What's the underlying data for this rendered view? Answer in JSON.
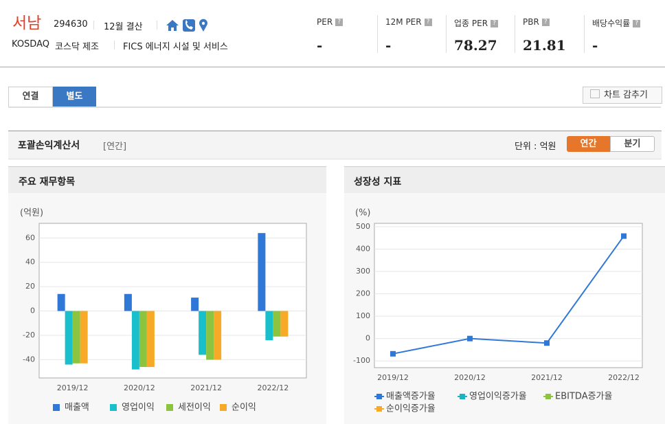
{
  "header": {
    "name": "서남",
    "code": "294630",
    "settlement": "12월 결산",
    "market": "KOSDAQ",
    "sector": "코스닥 제조",
    "fics": "FICS 에너지 시설 및 서비스",
    "metrics": [
      {
        "label": "PER",
        "value": "-"
      },
      {
        "label": "12M PER",
        "value": "-"
      },
      {
        "label": "업종 PER",
        "value": "78.27"
      },
      {
        "label": "PBR",
        "value": "21.81"
      },
      {
        "label": "배당수익률",
        "value": "-"
      }
    ]
  },
  "tabs": [
    "연결",
    "별도"
  ],
  "hide_chart": "차트 감추기",
  "section": {
    "title": "포괄손익계산서",
    "period": "[연간]",
    "unit": "단위 : 억원",
    "toggle": [
      "연간",
      "분기"
    ]
  },
  "panels": [
    "주요 재무항목",
    "성장성 지표"
  ],
  "chart_data": [
    {
      "type": "bar",
      "unit_label": "(억원)",
      "categories": [
        "2019/12",
        "2020/12",
        "2021/12",
        "2022/12"
      ],
      "series": [
        {
          "name": "매출액",
          "color": "#2f78d8",
          "values": [
            14,
            14,
            11,
            64
          ]
        },
        {
          "name": "영업이익",
          "color": "#19bfcb",
          "values": [
            -44,
            -48,
            -36,
            -24
          ]
        },
        {
          "name": "세전이익",
          "color": "#8cc43f",
          "values": [
            -43,
            -46,
            -40,
            -21
          ]
        },
        {
          "name": "순이익",
          "color": "#f7a928",
          "values": [
            -43,
            -46,
            -40,
            -21
          ]
        }
      ],
      "ylim": [
        -55,
        72
      ],
      "yticks": [
        -40,
        -20,
        0,
        20,
        40,
        60
      ],
      "grid": true
    },
    {
      "type": "line",
      "unit_label": "(%)",
      "categories": [
        "2019/12",
        "2020/12",
        "2021/12",
        "2022/12"
      ],
      "series": [
        {
          "name": "매출액증가율",
          "color": "#2f78d8",
          "values": [
            -68,
            0,
            -20,
            458
          ]
        },
        {
          "name": "영업이익증가율",
          "color": "#19b3c2",
          "values": [
            null,
            null,
            null,
            null
          ]
        },
        {
          "name": "EBITDA증가율",
          "color": "#8cc43f",
          "values": [
            null,
            null,
            null,
            null
          ]
        },
        {
          "name": "순이익증가율",
          "color": "#f7a928",
          "values": [
            null,
            null,
            null,
            null
          ]
        }
      ],
      "ylim": [
        -130,
        515
      ],
      "yticks": [
        -100,
        0,
        100,
        200,
        300,
        400,
        500
      ],
      "grid": true
    }
  ]
}
